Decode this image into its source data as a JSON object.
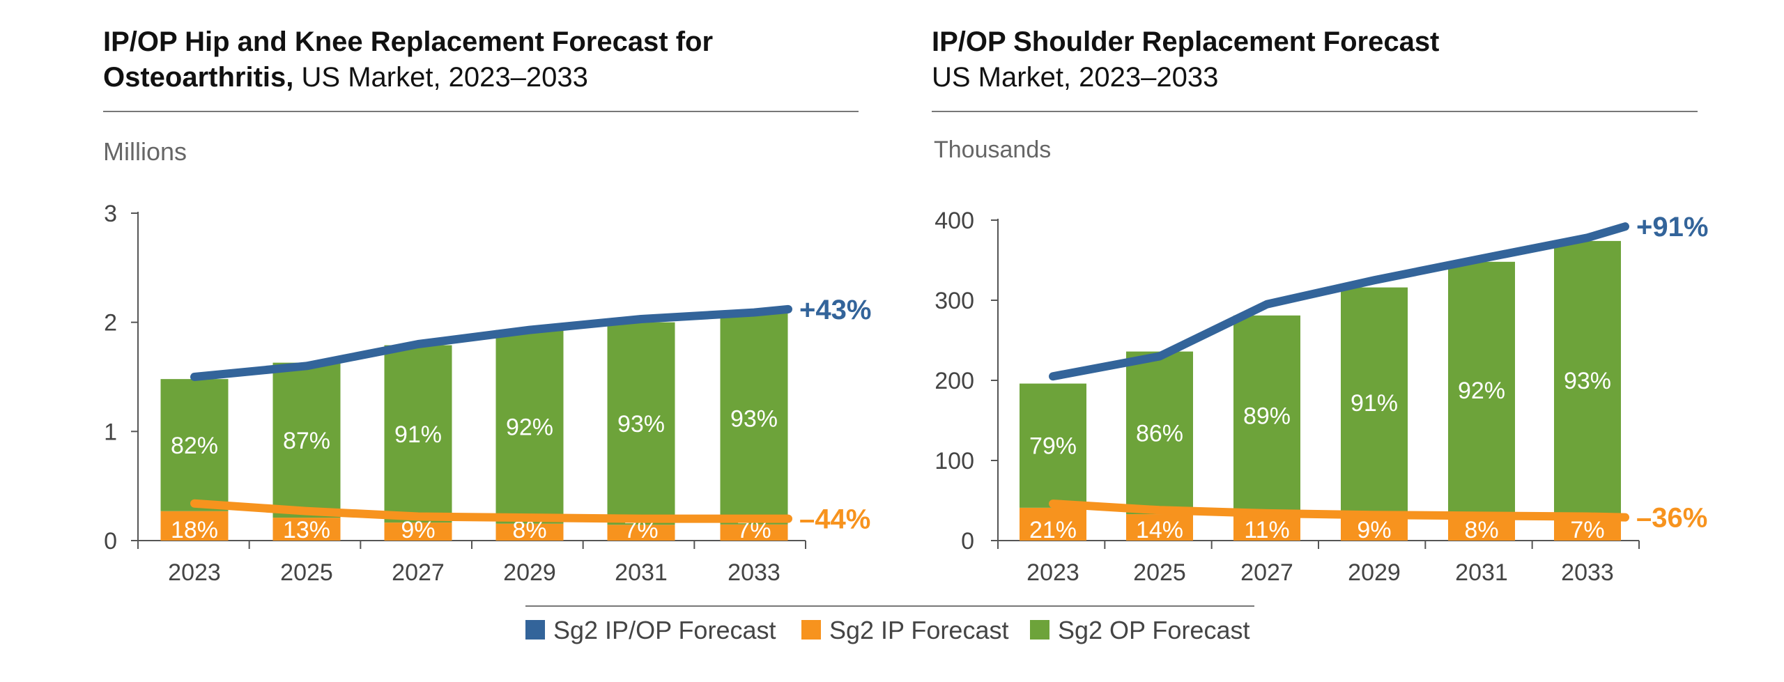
{
  "chart_data": [
    {
      "type": "bar",
      "title_bold": "IP/OP Hip and Knee Replacement Forecast for",
      "title_bold_2": "Osteoarthritis,",
      "title_rest": " US Market, 2023–2033",
      "ylabel": "Millions",
      "ylim": [
        0,
        3
      ],
      "yticks": [
        "0",
        "1",
        "2",
        "3"
      ],
      "categories": [
        "2023",
        "2025",
        "2027",
        "2029",
        "2031",
        "2033"
      ],
      "series": [
        {
          "name": "Sg2 IP Forecast",
          "kind": "stacked-bar",
          "values": [
            0.27,
            0.21,
            0.165,
            0.155,
            0.145,
            0.148
          ],
          "labels": [
            "18%",
            "13%",
            "9%",
            "8%",
            "7%",
            "7%"
          ]
        },
        {
          "name": "Sg2 OP Forecast",
          "kind": "stacked-bar",
          "values": [
            1.21,
            1.42,
            1.625,
            1.775,
            1.855,
            1.942
          ],
          "labels": [
            "82%",
            "87%",
            "91%",
            "92%",
            "93%",
            "93%"
          ]
        },
        {
          "name": "Sg2 IP/OP Forecast",
          "kind": "line",
          "x": [
            2023,
            2025,
            2027,
            2029,
            2031,
            2033,
            2034
          ],
          "values": [
            1.5,
            1.6,
            1.8,
            1.93,
            2.03,
            2.09,
            2.12
          ]
        },
        {
          "name": "Sg2 IP Forecast",
          "kind": "line",
          "x": [
            2023,
            2025,
            2027,
            2029,
            2031,
            2033,
            2034
          ],
          "values": [
            0.34,
            0.27,
            0.22,
            0.21,
            0.2,
            0.2,
            0.2
          ]
        }
      ],
      "annotations": {
        "total_change": "+43%",
        "ip_change": "–44%"
      }
    },
    {
      "type": "bar",
      "title_bold": "IP/OP Shoulder Replacement Forecast",
      "title_rest": "US Market, 2023–2033",
      "ylabel": "Thousands",
      "ylim": [
        0,
        400
      ],
      "yticks": [
        "0",
        "100",
        "200",
        "300",
        "400"
      ],
      "categories": [
        "2023",
        "2025",
        "2027",
        "2029",
        "2031",
        "2033"
      ],
      "series": [
        {
          "name": "Sg2 IP Forecast",
          "kind": "stacked-bar",
          "values": [
            41,
            33,
            31,
            28,
            28,
            26
          ],
          "labels": [
            "21%",
            "14%",
            "11%",
            "9%",
            "8%",
            "7%"
          ]
        },
        {
          "name": "Sg2 OP Forecast",
          "kind": "stacked-bar",
          "values": [
            155,
            203,
            250,
            288,
            320,
            348
          ],
          "labels": [
            "79%",
            "86%",
            "89%",
            "91%",
            "92%",
            "93%"
          ]
        },
        {
          "name": "Sg2 IP/OP Forecast",
          "kind": "line",
          "x": [
            2023,
            2025,
            2027,
            2029,
            2031,
            2033,
            2034
          ],
          "values": [
            205,
            230,
            295,
            325,
            352,
            378,
            392
          ]
        },
        {
          "name": "Sg2 IP Forecast",
          "kind": "line",
          "x": [
            2023,
            2025,
            2027,
            2029,
            2031,
            2033,
            2034
          ],
          "values": [
            46,
            38,
            34,
            32,
            31,
            30,
            29
          ]
        }
      ],
      "annotations": {
        "total_change": "+91%",
        "ip_change": "–36%"
      }
    }
  ],
  "legend": [
    {
      "name": "Sg2 IP/OP Forecast",
      "color": "#33649a"
    },
    {
      "name": "Sg2 IP Forecast",
      "color": "#f7931e"
    },
    {
      "name": "Sg2 OP Forecast",
      "color": "#6da33a"
    }
  ],
  "colors": {
    "total": "#33649a",
    "ip": "#f7931e",
    "op": "#6da33a",
    "axis": "#555555",
    "text": "#444444"
  }
}
